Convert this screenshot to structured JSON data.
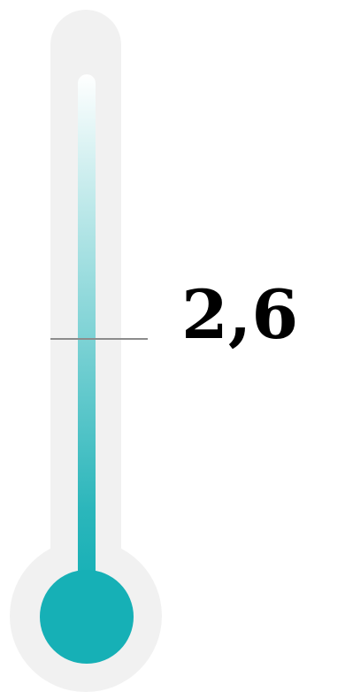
{
  "gauge": {
    "value_label": "2,6",
    "liquid_color": "#16b0b6",
    "track_color": "#f1f1f1",
    "marker_color": "#8c8c8c"
  }
}
